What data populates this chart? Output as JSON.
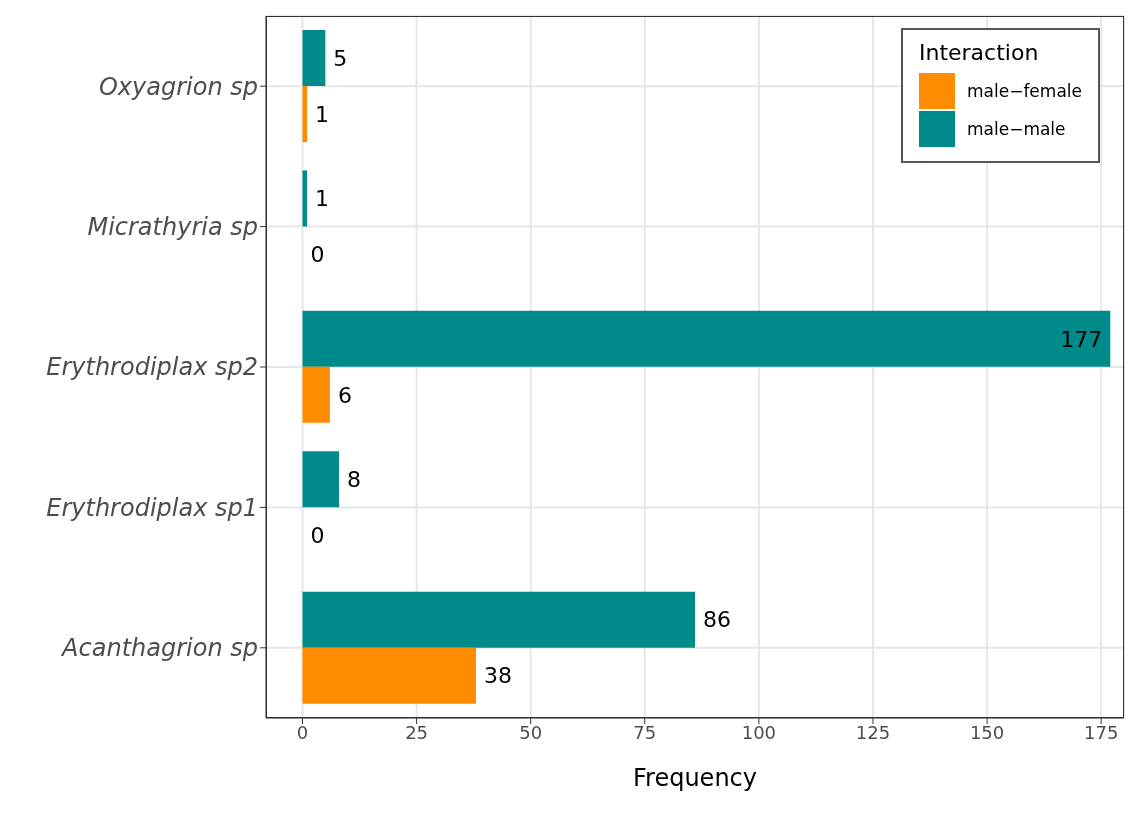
{
  "chart_data": {
    "type": "bar",
    "orientation": "horizontal",
    "xlabel": "Frequency",
    "legend_title": "Interaction",
    "categories": [
      "Oxyagrion sp",
      "Micrathyria sp",
      "Erythrodiplax sp2",
      "Erythrodiplax sp1",
      "Acanthagrion sp"
    ],
    "series": [
      {
        "name": "male−female",
        "color": "#ff8c00",
        "values": [
          1,
          0,
          6,
          0,
          38
        ]
      },
      {
        "name": "male−male",
        "color": "#008b8b",
        "values": [
          5,
          1,
          177,
          8,
          86
        ]
      }
    ],
    "xlim": [
      -8,
      180
    ],
    "xticks": [
      0,
      25,
      50,
      75,
      100,
      125,
      150,
      175
    ],
    "grid": true,
    "legend": "top right",
    "data_labels": true
  }
}
